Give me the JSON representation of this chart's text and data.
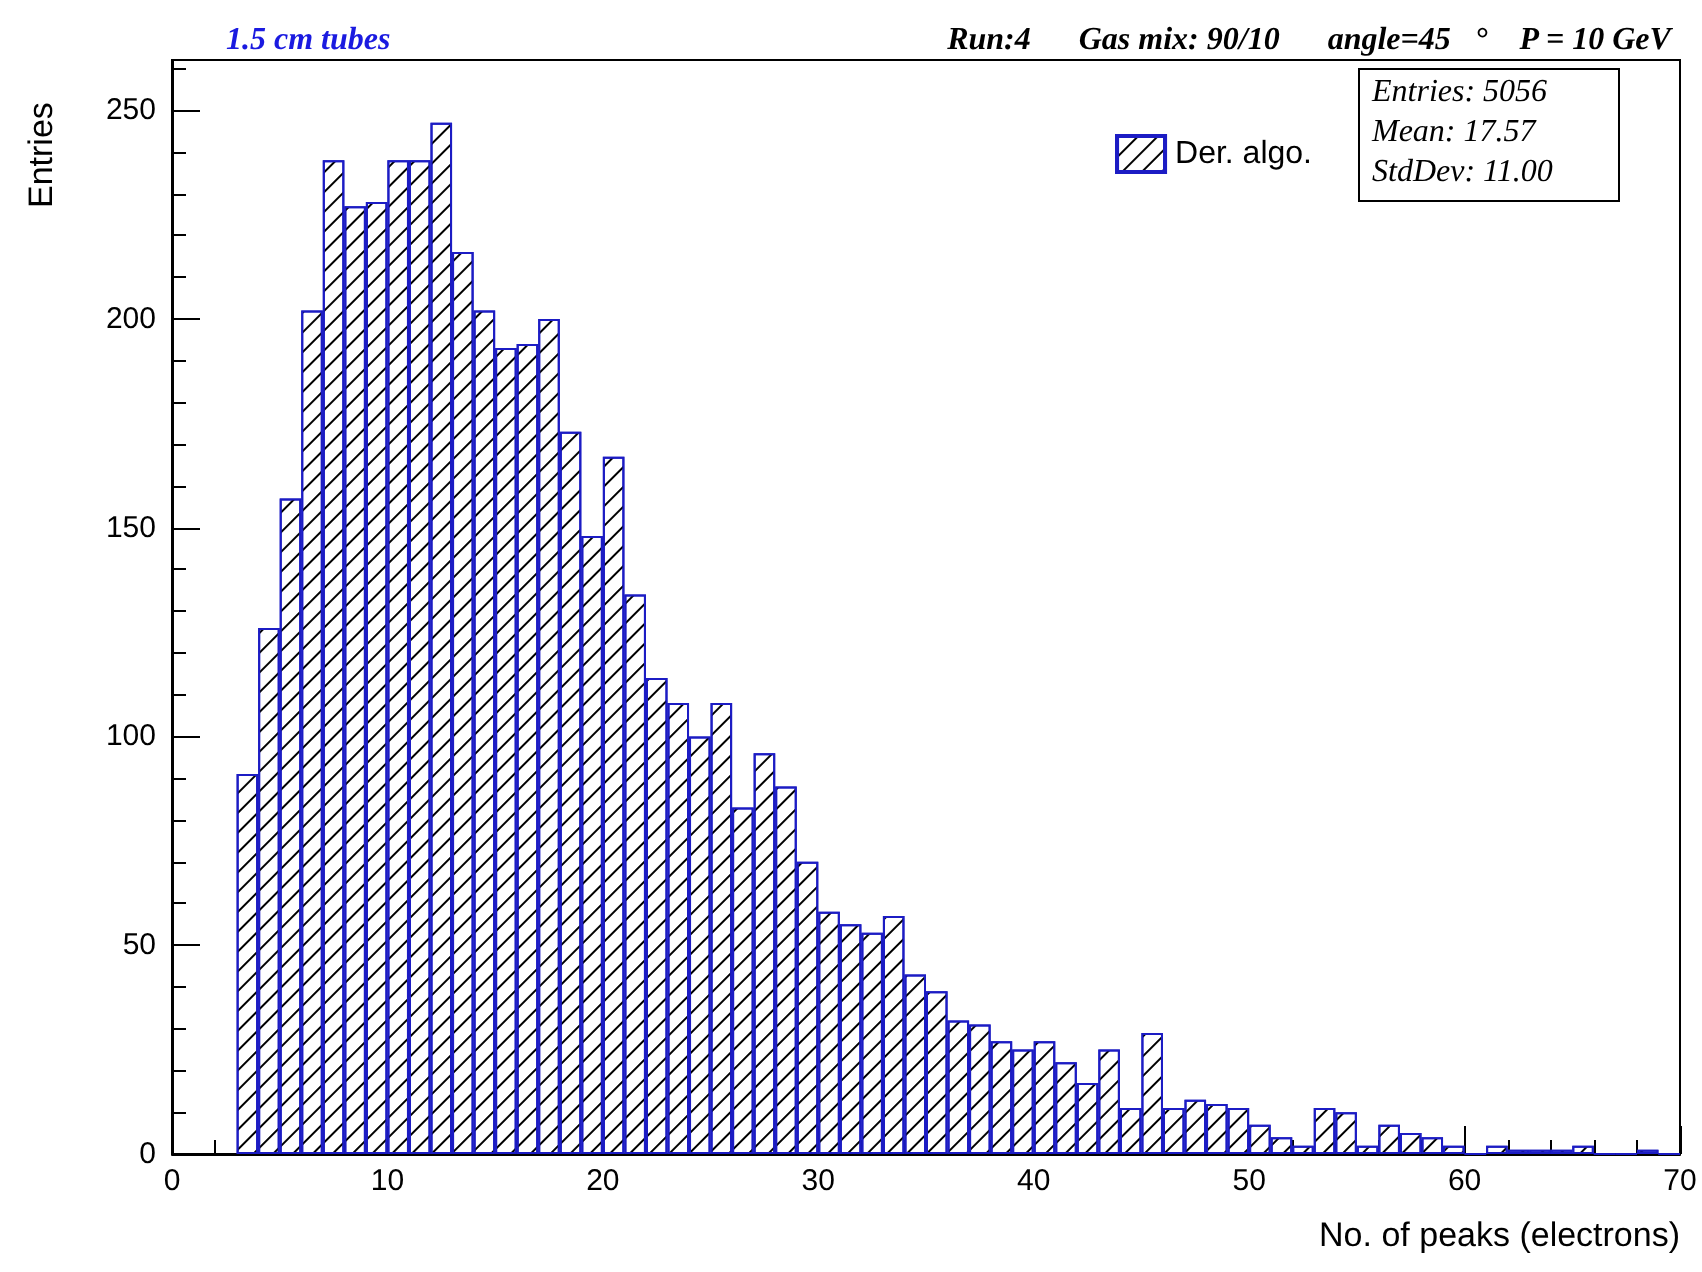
{
  "chart_data": {
    "type": "histogram",
    "title": "1.5 cm tubes",
    "subtitle": "Run:4      Gas mix: 90/10      angle=45   °    P = 10 GeV",
    "xlabel": "No. of peaks (electrons)",
    "ylabel": "Entries",
    "bins": [
      3,
      4,
      5,
      6,
      7,
      8,
      9,
      10,
      11,
      12,
      13,
      14,
      15,
      16,
      17,
      18,
      19,
      20,
      21,
      22,
      23,
      24,
      25,
      26,
      27,
      28,
      29,
      30,
      31,
      32,
      33,
      34,
      35,
      36,
      37,
      38,
      39,
      40,
      41,
      42,
      43,
      44,
      45,
      46,
      47,
      48,
      49,
      50,
      51,
      52,
      53,
      54,
      55,
      56,
      57,
      58,
      59,
      60,
      61,
      62,
      63,
      64,
      65,
      66,
      67,
      68,
      69,
      70
    ],
    "series": [
      {
        "name": "Der. algo.",
        "color": "#1c1cc4",
        "values": [
          91,
          126,
          157,
          202,
          238,
          227,
          228,
          238,
          238,
          247,
          216,
          202,
          193,
          194,
          200,
          173,
          148,
          167,
          134,
          114,
          108,
          100,
          108,
          83,
          96,
          88,
          70,
          58,
          55,
          53,
          57,
          43,
          39,
          32,
          31,
          27,
          25,
          27,
          22,
          17,
          25,
          11,
          29,
          11,
          13,
          12,
          11,
          7,
          4,
          2,
          11,
          10,
          2,
          7,
          5,
          4,
          2,
          0,
          2,
          1,
          1,
          1,
          2,
          0,
          0,
          1,
          0
        ]
      }
    ],
    "xlim": [
      0,
      70
    ],
    "xticks": [
      0,
      10,
      20,
      30,
      40,
      50,
      60,
      70
    ],
    "ylim": [
      0,
      262
    ],
    "yticks": [
      0,
      50,
      100,
      150,
      200,
      250
    ],
    "legend": "top right",
    "grid": false,
    "annotations": [
      "Entries: 5056",
      "Mean: 17.57",
      "StdDev: 11.00"
    ]
  }
}
